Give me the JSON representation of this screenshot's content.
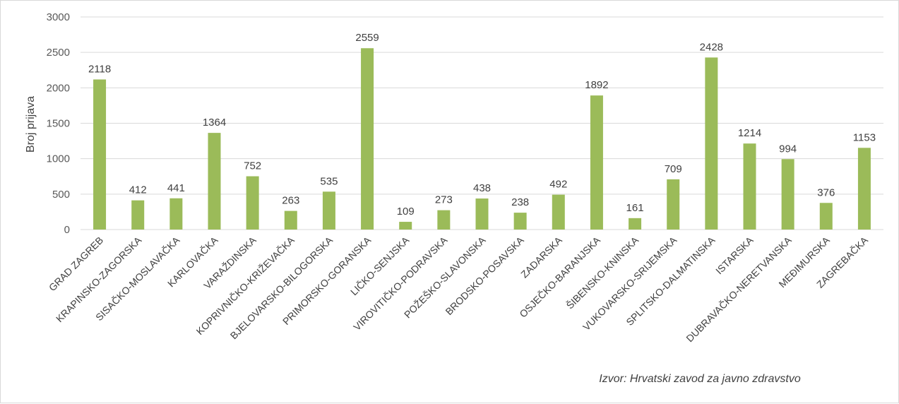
{
  "chart_data": {
    "type": "bar",
    "categories": [
      "GRAD ZAGREB",
      "KRAPINSKO-ZAGORSKA",
      "SISAČKO-MOSLAVAČKA",
      "KARLOVAČKA",
      "VARAŽDINSKA",
      "KOPRIVNIČKO-KRIŽEVAČKA",
      "BJELOVARSKO-BILOGORSKA",
      "PRIMORSKO-GORANSKA",
      "LIČKO-SENJSKA",
      "VIROVITIČKO-PODRAVSKA",
      "POŽEŠKO-SLAVONSKA",
      "BRODSKO-POSAVSKA",
      "ZADARSKA",
      "OSJEČKO-BARANJSKA",
      "ŠIBENSKO-KNINSKA",
      "VUKOVARSKO-SRIJEMSKA",
      "SPLITSKO-DALMATINSKA",
      "ISTARSKA",
      "DUBRAVAČKO-NERETVANSKA",
      "MEĐIMURSKA",
      "ZAGREBAČKA"
    ],
    "values": [
      2118,
      412,
      441,
      1364,
      752,
      263,
      535,
      2559,
      109,
      273,
      438,
      238,
      492,
      1892,
      161,
      709,
      2428,
      1214,
      994,
      376,
      1153
    ],
    "ylabel": "Broj prijava",
    "xlabel": "",
    "ylim": [
      0,
      3000
    ],
    "yticks": [
      0,
      500,
      1000,
      1500,
      2000,
      2500,
      3000
    ],
    "grid": true,
    "legend": "none",
    "bar_color": "#9bbb59",
    "grid_color": "#d9d9d9",
    "source": "Izvor: Hrvatski zavod za javno zdravstvo"
  }
}
